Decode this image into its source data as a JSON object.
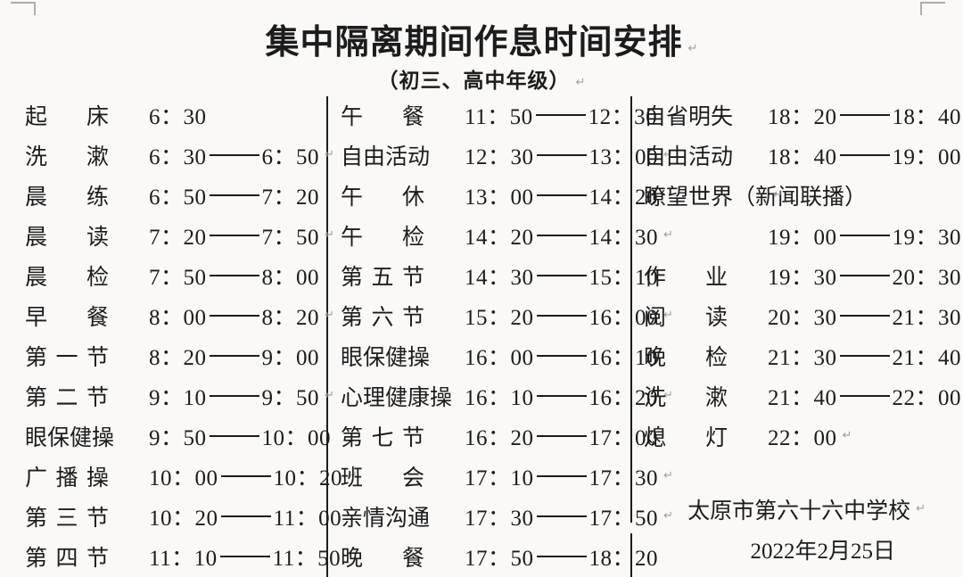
{
  "title": {
    "text": "集中隔离期间作息时间安排",
    "mark": "↵"
  },
  "subtitle": {
    "text": "（初三、高中年级）",
    "mark": "↵"
  },
  "columns": [
    {
      "name": "morning",
      "rows": [
        {
          "label": "起床",
          "start": "6：30"
        },
        {
          "label": "洗漱",
          "start": "6：30",
          "end": "6：50",
          "mark": "↵"
        },
        {
          "label": "晨练",
          "start": "6：50",
          "end": "7：20"
        },
        {
          "label": "晨读",
          "start": "7：20",
          "end": "7：50",
          "mark": "↵"
        },
        {
          "label": "晨检",
          "start": "7：50",
          "end": "8：00"
        },
        {
          "label": "早餐",
          "start": "8：00",
          "end": "8：20",
          "mark": "↵"
        },
        {
          "label": "第一节",
          "start": "8：20",
          "end": "9：00"
        },
        {
          "label": "第二节",
          "start": "9：10",
          "end": "9：50",
          "mark": "↵"
        },
        {
          "label": "眼保健操",
          "start": "9：50",
          "end": "10：00"
        },
        {
          "label": "广播操",
          "start": "10：00",
          "end": "10：20",
          "mark": "↵"
        },
        {
          "label": "第三节",
          "start": "10：20",
          "end": "11：00"
        },
        {
          "label": "第四节",
          "start": "11：10",
          "end": "11：50"
        }
      ]
    },
    {
      "name": "afternoon",
      "rows": [
        {
          "label": "午餐",
          "start": "11：50",
          "end": "12：30"
        },
        {
          "label": "自由活动",
          "start": "12：30",
          "end": "13：00",
          "mark": "↵"
        },
        {
          "label": "午休",
          "start": "13：00",
          "end": "14：20"
        },
        {
          "label": "午检",
          "start": "14：20",
          "end": "14：30",
          "mark": "↵"
        },
        {
          "label": "第五节",
          "start": "14：30",
          "end": "15：10"
        },
        {
          "label": "第六节",
          "start": "15：20",
          "end": "16：00",
          "mark": "↵"
        },
        {
          "label": "眼保健操",
          "start": "16：00",
          "end": "16：10"
        },
        {
          "label": "心理健康操",
          "start": "16：10",
          "end": "16：20",
          "mark": "↵"
        },
        {
          "label": "第七节",
          "start": "16：20",
          "end": "17：00"
        },
        {
          "label": "班会",
          "start": "17：10",
          "end": "17：30",
          "mark": "↵"
        },
        {
          "label": "亲情沟通",
          "start": "17：30",
          "end": "17：50",
          "mark": "↵"
        },
        {
          "label": "晚餐",
          "start": "17：50",
          "end": "18：20"
        }
      ]
    },
    {
      "name": "evening",
      "rows": [
        {
          "label": "自省明失",
          "start": "18：20",
          "end": "18：40",
          "mark": "↵"
        },
        {
          "label": "自由活动",
          "start": "18：40",
          "end": "19：00",
          "mark": "↵"
        },
        {
          "label": "瞭望世界（新闻联播）",
          "mark": "↵"
        },
        {
          "label": "",
          "start": "19：00",
          "end": "19：30",
          "mark": "↵"
        },
        {
          "label": "作业",
          "start": "19：30",
          "end": "20：30",
          "mark": "↵"
        },
        {
          "label": "阅读",
          "start": "20：30",
          "end": "21：30",
          "mark": "↵"
        },
        {
          "label": "晚检",
          "start": "21：30",
          "end": "21：40",
          "mark": "↵"
        },
        {
          "label": "洗漱",
          "start": "21：40",
          "end": "22：00"
        },
        {
          "label": "熄灯",
          "start": "22：00",
          "mark": "↵"
        }
      ]
    }
  ],
  "footer": {
    "school": {
      "text": "太原市第六十六中学校",
      "mark": "↵"
    },
    "date": {
      "text": "2022年2月25日"
    }
  }
}
